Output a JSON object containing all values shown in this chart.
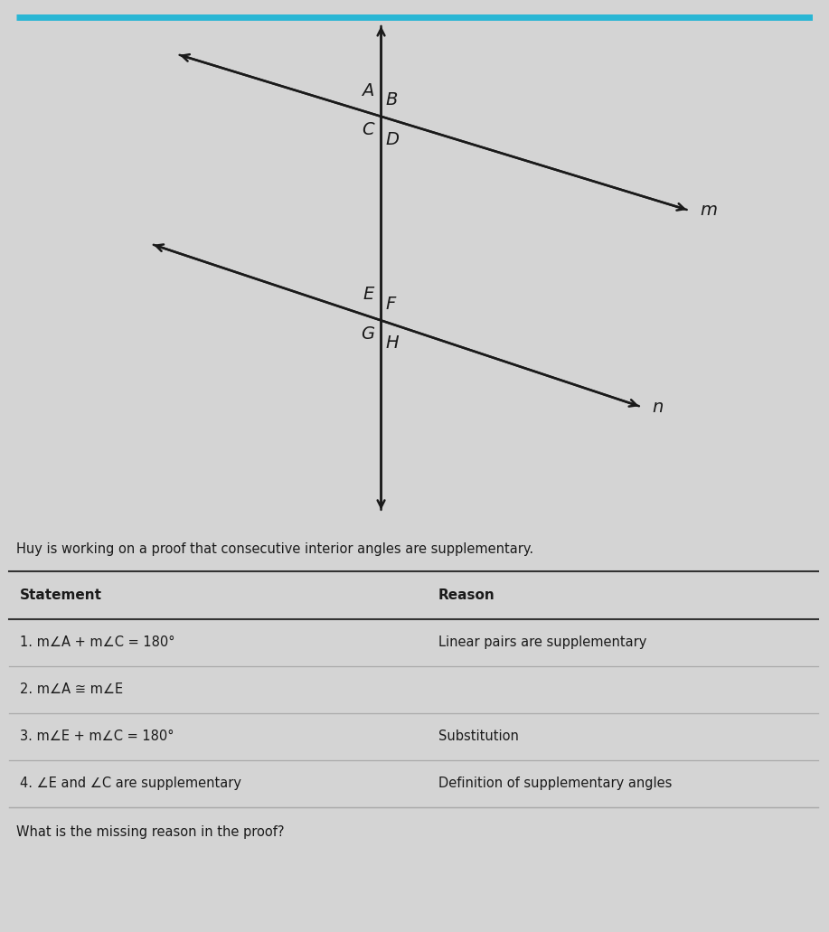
{
  "bg_color": "#d4d4d4",
  "diagram_bg": "#e8e8e8",
  "diagram_box_bg": "#f2f2f2",
  "table_bg": "#e8e8e8",
  "top_border_color": "#29b6d4",
  "title_text": "Huy is working on a proof that consecutive interior angles are supplementary.",
  "header_statement": "Statement",
  "header_reason": "Reason",
  "rows": [
    {
      "statement": "1. m∠A + m∠C = 180°",
      "reason": "Linear pairs are supplementary"
    },
    {
      "statement": "2. m∠A ≅ m∠E",
      "reason": ""
    },
    {
      "statement": "3. m∠E + m∠C = 180°",
      "reason": "Substitution"
    },
    {
      "statement": "4. ∠E and ∠C are supplementary",
      "reason": "Definition of supplementary angles"
    }
  ],
  "question_text": "What is the missing reason in the proof?",
  "top_border_color2": "#29b6d4",
  "line_color": "#1a1a1a",
  "label_fontsize": 14,
  "lw": 1.8
}
